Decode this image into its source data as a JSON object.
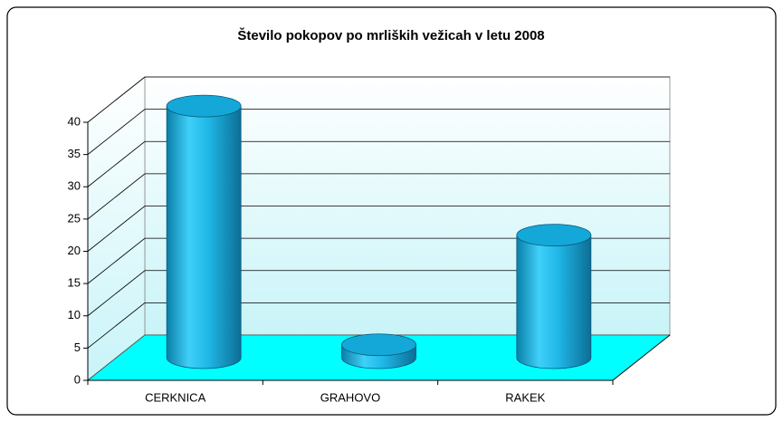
{
  "chart_data": {
    "type": "bar",
    "title": "Število pokopov po mrliških vežicah v letu 2008",
    "categories": [
      "CERKNICA",
      "GRAHOVO",
      "RAKEK"
    ],
    "values": [
      39,
      2,
      19
    ],
    "color": "#1ab8e8",
    "ylim": [
      0,
      40
    ],
    "yticks": [
      0,
      5,
      10,
      15,
      20,
      25,
      30,
      35,
      40
    ],
    "grid": true
  }
}
